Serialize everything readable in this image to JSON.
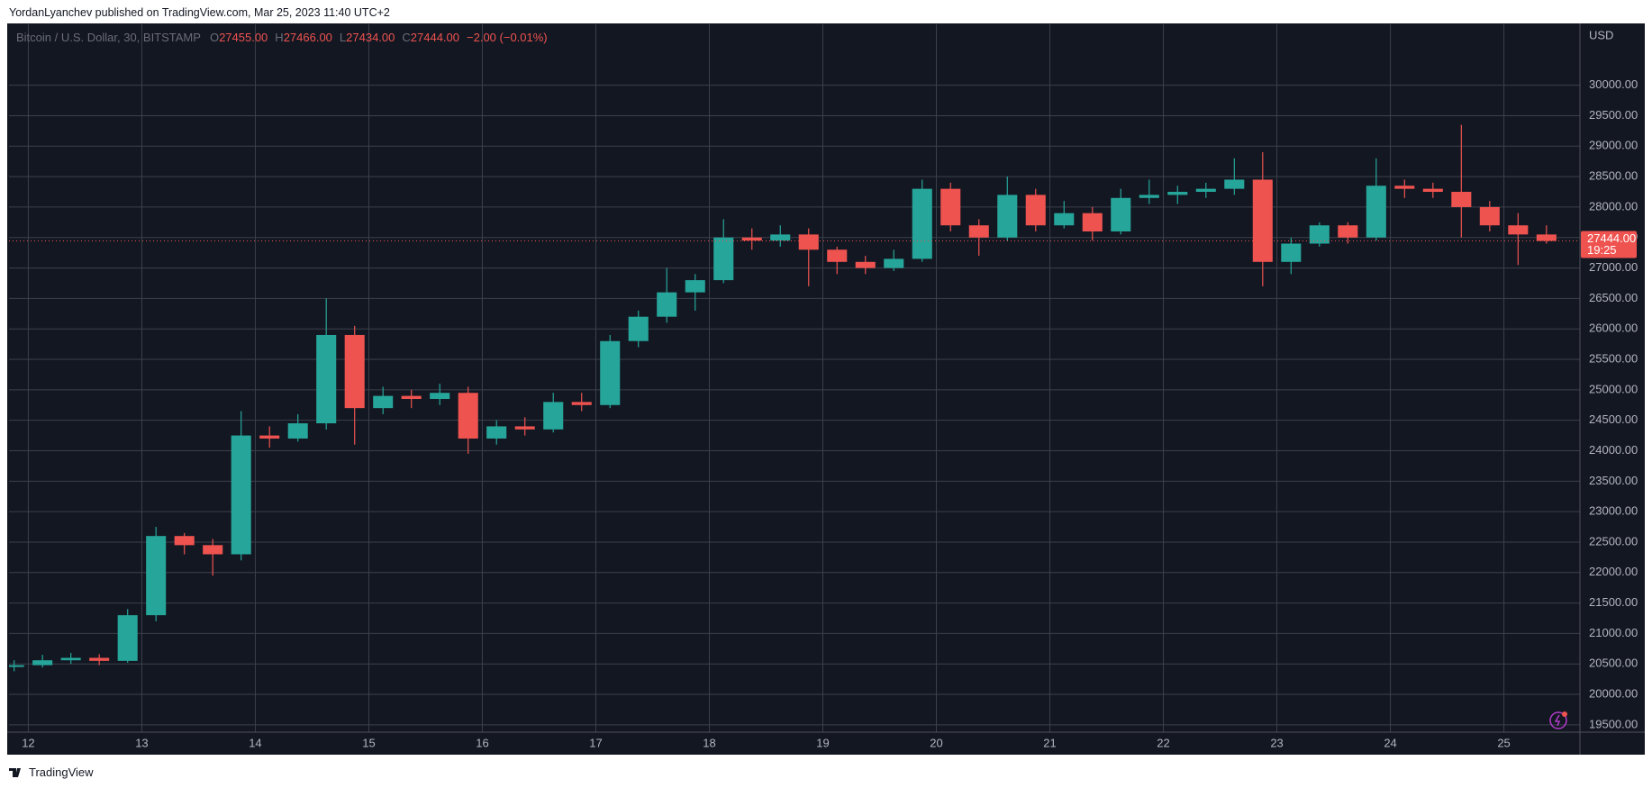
{
  "header": {
    "published": "YordanLyanchev published on TradingView.com, Mar 25, 2023 11:40 UTC+2"
  },
  "footer": {
    "brand": "TradingView"
  },
  "chart_data": {
    "type": "candlestick",
    "title": "Bitcoin / U.S. Dollar, 30, BITSTAMP",
    "ohlc_legend": [
      {
        "key": "O",
        "text": "27455.00"
      },
      {
        "key": "H",
        "text": "27466.00"
      },
      {
        "key": "L",
        "text": "27434.00"
      },
      {
        "key": "C",
        "text": "27444.00"
      }
    ],
    "change_text": "−2.00 (−0.01%)",
    "currency": "USD",
    "up_color": "#26a69a",
    "down_color": "#ef5350",
    "grid": true,
    "x": [
      11.875,
      12.125,
      12.375,
      12.625,
      12.875,
      13.125,
      13.375,
      13.625,
      13.875,
      14.125,
      14.375,
      14.625,
      14.875,
      15.125,
      15.375,
      15.625,
      15.875,
      16.125,
      16.375,
      16.625,
      16.875,
      17.125,
      17.375,
      17.625,
      17.875,
      18.125,
      18.375,
      18.625,
      18.875,
      19.125,
      19.375,
      19.625,
      19.875,
      20.125,
      20.375,
      20.625,
      20.875,
      21.125,
      21.375,
      21.625,
      21.875,
      22.125,
      22.375,
      22.625,
      22.875,
      23.125,
      23.375,
      23.625,
      23.875,
      24.125,
      24.375,
      24.625,
      24.875,
      25.125,
      25.375
    ],
    "open": [
      20450,
      20480,
      20560,
      20600,
      20550,
      21300,
      22600,
      22450,
      22300,
      24250,
      24200,
      24450,
      25900,
      24700,
      24900,
      24850,
      24950,
      24200,
      24400,
      24350,
      24800,
      24750,
      25800,
      26200,
      26600,
      26800,
      27500,
      27450,
      27550,
      27300,
      27100,
      27000,
      27150,
      28300,
      27700,
      27500,
      28200,
      27700,
      27900,
      27600,
      28150,
      28200,
      28250,
      28300,
      28450,
      27100,
      27400,
      27700,
      27500,
      28350,
      28300,
      28250,
      28000,
      27700,
      27550
    ],
    "high": [
      20560,
      20650,
      20680,
      20660,
      21400,
      22750,
      22650,
      22550,
      24650,
      24400,
      24600,
      26500,
      26050,
      25050,
      25000,
      25100,
      25050,
      24500,
      24550,
      24950,
      24950,
      25900,
      26300,
      27000,
      26900,
      27800,
      27650,
      27700,
      27650,
      27350,
      27200,
      27300,
      28450,
      28400,
      27800,
      28500,
      28300,
      28100,
      28000,
      28300,
      28450,
      28350,
      28400,
      28800,
      28900,
      27500,
      27750,
      27750,
      28800,
      28450,
      28400,
      29350,
      28100,
      27900,
      27700
    ],
    "low": [
      20380,
      20440,
      20500,
      20480,
      20520,
      21200,
      22300,
      21950,
      22200,
      24050,
      24150,
      24350,
      24100,
      24600,
      24700,
      24750,
      23950,
      24100,
      24250,
      24300,
      24650,
      24700,
      25700,
      26100,
      26300,
      26750,
      27300,
      27350,
      26700,
      26900,
      26900,
      26950,
      27100,
      27600,
      27200,
      27450,
      27600,
      27650,
      27450,
      27550,
      28050,
      28050,
      28150,
      28200,
      26700,
      26900,
      27350,
      27400,
      27450,
      28150,
      28150,
      27500,
      27600,
      27050,
      27400
    ],
    "close": [
      20480,
      20560,
      20600,
      20550,
      21300,
      22600,
      22450,
      22300,
      24250,
      24200,
      24450,
      25900,
      24700,
      24900,
      24850,
      24950,
      24200,
      24400,
      24350,
      24800,
      24750,
      25800,
      26200,
      26600,
      26800,
      27500,
      27450,
      27550,
      27300,
      27100,
      27000,
      27150,
      28300,
      27700,
      27500,
      28200,
      27700,
      27900,
      27600,
      28150,
      28200,
      28250,
      28300,
      28450,
      27100,
      27400,
      27700,
      27500,
      28350,
      28300,
      28250,
      28000,
      27700,
      27550,
      27444
    ],
    "xlim": [
      11.83,
      25.67
    ],
    "xticks": [
      12,
      13,
      14,
      15,
      16,
      17,
      18,
      19,
      20,
      21,
      22,
      23,
      24,
      25
    ],
    "ylim": [
      19380,
      31000
    ],
    "yticks": [
      {
        "value": 19500,
        "label": "19500.00"
      },
      {
        "value": 20000,
        "label": "20000.00"
      },
      {
        "value": 20500,
        "label": "20500.00"
      },
      {
        "value": 21000,
        "label": "21000.00"
      },
      {
        "value": 21500,
        "label": "21500.00"
      },
      {
        "value": 22000,
        "label": "22000.00"
      },
      {
        "value": 22500,
        "label": "22500.00"
      },
      {
        "value": 23000,
        "label": "23000.00"
      },
      {
        "value": 23500,
        "label": "23500.00"
      },
      {
        "value": 24000,
        "label": "24000.00"
      },
      {
        "value": 24500,
        "label": "24500.00"
      },
      {
        "value": 25000,
        "label": "25000.00"
      },
      {
        "value": 25500,
        "label": "25500.00"
      },
      {
        "value": 26000,
        "label": "26000.00"
      },
      {
        "value": 26500,
        "label": "26500.00"
      },
      {
        "value": 27000,
        "label": "27000.00"
      },
      {
        "value": 27500,
        "label": "27500.00"
      },
      {
        "value": 28000,
        "label": "28000.00"
      },
      {
        "value": 28500,
        "label": "28500.00"
      },
      {
        "value": 29000,
        "label": "29000.00"
      },
      {
        "value": 29500,
        "label": "29500.00"
      },
      {
        "value": 30000,
        "label": "30000.00"
      }
    ],
    "last_price": {
      "value": 27444,
      "label": "27444.00"
    },
    "countdown": "19:25"
  }
}
